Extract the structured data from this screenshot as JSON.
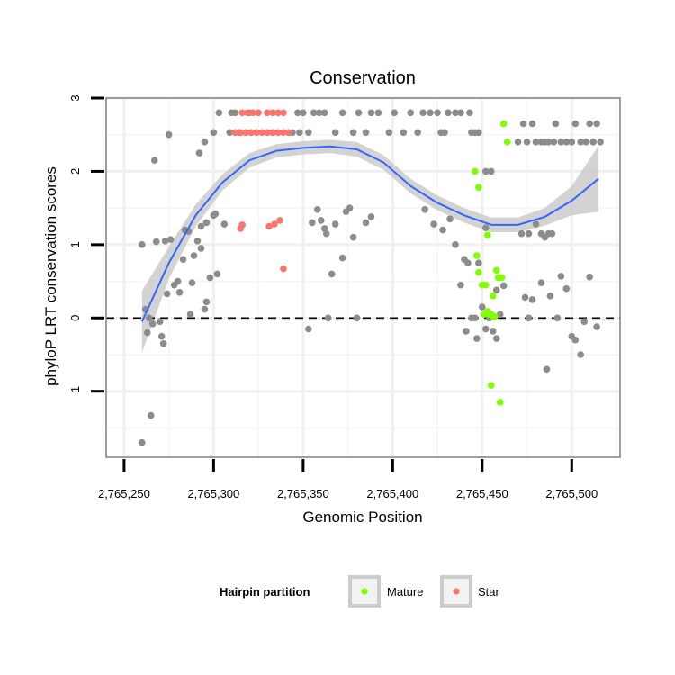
{
  "chart_data": {
    "type": "scatter",
    "title": "Conservation",
    "xlabel": "Genomic Position",
    "ylabel": "phyloP LRT conservation scores",
    "xlim": [
      2765240,
      2765527
    ],
    "ylim": [
      -1.9,
      3.0
    ],
    "x_ticks": [
      2765250,
      2765300,
      2765350,
      2765400,
      2765450,
      2765500
    ],
    "x_tick_labels": [
      "2,765,250",
      "2,765,300",
      "2,765,350",
      "2,765,400",
      "2,765,450",
      "2,765,500"
    ],
    "y_ticks": [
      -1,
      0,
      1,
      2,
      3
    ],
    "y_tick_labels": [
      "-1",
      "0",
      "1",
      "2",
      "3"
    ],
    "grid": true,
    "reference_line": {
      "y": 0,
      "style": "dashed"
    },
    "legend": {
      "title": "Hairpin partition",
      "position": "bottom",
      "entries": [
        {
          "label": "Mature",
          "color": "#7FFF00"
        },
        {
          "label": "Star",
          "color": "#F8766D"
        }
      ]
    },
    "colors": {
      "other": "#8C8C8C",
      "Mature": "#7FFF00",
      "Star": "#F8766D",
      "smooth": "#3366FF",
      "band": "#C8C8C8"
    },
    "smooth_line": {
      "x": [
        2765260,
        2765275,
        2765290,
        2765305,
        2765320,
        2765335,
        2765350,
        2765365,
        2765380,
        2765395,
        2765410,
        2765425,
        2765440,
        2765455,
        2765470,
        2765485,
        2765500,
        2765515
      ],
      "y": [
        -0.05,
        0.75,
        1.4,
        1.85,
        2.15,
        2.28,
        2.32,
        2.34,
        2.3,
        2.12,
        1.8,
        1.57,
        1.4,
        1.27,
        1.27,
        1.38,
        1.6,
        1.9
      ],
      "band_halfwidth": [
        0.42,
        0.22,
        0.15,
        0.11,
        0.1,
        0.09,
        0.09,
        0.09,
        0.1,
        0.1,
        0.1,
        0.1,
        0.1,
        0.1,
        0.1,
        0.12,
        0.2,
        0.45
      ]
    },
    "series": [
      {
        "name": "Other",
        "points": [
          [
            2765260,
            1.0
          ],
          [
            2765262,
            0.12
          ],
          [
            2765263,
            -0.2
          ],
          [
            2765264,
            0.0
          ],
          [
            2765266,
            -0.08
          ],
          [
            2765265,
            -1.33
          ],
          [
            2765260,
            -1.7
          ],
          [
            2765267,
            2.15
          ],
          [
            2765268,
            1.04
          ],
          [
            2765270,
            -0.05
          ],
          [
            2765271,
            -0.25
          ],
          [
            2765272,
            -0.35
          ],
          [
            2765273,
            1.05
          ],
          [
            2765274,
            0.33
          ],
          [
            2765275,
            2.5
          ],
          [
            2765276,
            1.07
          ],
          [
            2765278,
            0.45
          ],
          [
            2765280,
            0.5
          ],
          [
            2765281,
            0.35
          ],
          [
            2765283,
            0.8
          ],
          [
            2765284,
            1.2
          ],
          [
            2765286,
            1.18
          ],
          [
            2765287,
            0.05
          ],
          [
            2765288,
            0.48
          ],
          [
            2765289,
            0.85
          ],
          [
            2765291,
            1.05
          ],
          [
            2765292,
            2.25
          ],
          [
            2765293,
            1.25
          ],
          [
            2765293,
            0.95
          ],
          [
            2765295,
            0.12
          ],
          [
            2765295,
            2.4
          ],
          [
            2765296,
            1.3
          ],
          [
            2765296,
            0.22
          ],
          [
            2765298,
            0.55
          ],
          [
            2765300,
            1.4
          ],
          [
            2765301,
            1.42
          ],
          [
            2765302,
            0.6
          ],
          [
            2765300,
            2.53
          ],
          [
            2765303,
            2.8
          ],
          [
            2765306,
            1.28
          ],
          [
            2765309,
            2.53
          ],
          [
            2765310,
            2.8
          ],
          [
            2765312,
            2.8
          ],
          [
            2765314,
            2.53
          ],
          [
            2765318,
            2.53
          ],
          [
            2765320,
            2.8
          ],
          [
            2765344,
            2.53
          ],
          [
            2765347,
            2.8
          ],
          [
            2765348,
            2.53
          ],
          [
            2765350,
            2.8
          ],
          [
            2765353,
            2.53
          ],
          [
            2765356,
            2.8
          ],
          [
            2765359,
            2.8
          ],
          [
            2765362,
            2.8
          ],
          [
            2765368,
            2.53
          ],
          [
            2765372,
            2.8
          ],
          [
            2765378,
            2.53
          ],
          [
            2765381,
            2.8
          ],
          [
            2765385,
            2.53
          ],
          [
            2765388,
            2.8
          ],
          [
            2765392,
            2.8
          ],
          [
            2765398,
            2.53
          ],
          [
            2765401,
            2.8
          ],
          [
            2765406,
            2.53
          ],
          [
            2765410,
            2.8
          ],
          [
            2765414,
            2.53
          ],
          [
            2765417,
            2.8
          ],
          [
            2765421,
            2.8
          ],
          [
            2765425,
            2.8
          ],
          [
            2765427,
            2.53
          ],
          [
            2765429,
            2.53
          ],
          [
            2765431,
            2.8
          ],
          [
            2765435,
            2.8
          ],
          [
            2765438,
            2.8
          ],
          [
            2765443,
            2.8
          ],
          [
            2765444,
            2.53
          ],
          [
            2765446,
            2.53
          ],
          [
            2765448,
            2.53
          ],
          [
            2765452,
            1.23
          ],
          [
            2765355,
            1.3
          ],
          [
            2765358,
            1.48
          ],
          [
            2765360,
            1.33
          ],
          [
            2765363,
            1.15
          ],
          [
            2765364,
            0.0
          ],
          [
            2765366,
            0.6
          ],
          [
            2765368,
            1.28
          ],
          [
            2765372,
            0.82
          ],
          [
            2765374,
            1.45
          ],
          [
            2765376,
            1.5
          ],
          [
            2765378,
            1.1
          ],
          [
            2765380,
            0.0
          ],
          [
            2765385,
            1.3
          ],
          [
            2765388,
            1.38
          ],
          [
            2765353,
            -0.15
          ],
          [
            2765362,
            1.22
          ],
          [
            2765418,
            1.48
          ],
          [
            2765423,
            1.28
          ],
          [
            2765428,
            1.2
          ],
          [
            2765432,
            1.35
          ],
          [
            2765435,
            1.0
          ],
          [
            2765438,
            0.45
          ],
          [
            2765440,
            0.8
          ],
          [
            2765442,
            0.75
          ],
          [
            2765444,
            0.0
          ],
          [
            2765446,
            0.0
          ],
          [
            2765448,
            0.75
          ],
          [
            2765441,
            -0.18
          ],
          [
            2765447,
            -0.28
          ],
          [
            2765450,
            0.15
          ],
          [
            2765452,
            -0.15
          ],
          [
            2765454,
            0.0
          ],
          [
            2765456,
            -0.18
          ],
          [
            2765458,
            -0.28
          ],
          [
            2765460,
            0.05
          ],
          [
            2765462,
            0.44
          ],
          [
            2765452,
            2.0
          ],
          [
            2765455,
            2.0
          ],
          [
            2765470,
            2.4
          ],
          [
            2765473,
            2.65
          ],
          [
            2765475,
            2.4
          ],
          [
            2765478,
            2.65
          ],
          [
            2765480,
            2.4
          ],
          [
            2765483,
            2.4
          ],
          [
            2765485,
            2.4
          ],
          [
            2765487,
            2.4
          ],
          [
            2765490,
            2.4
          ],
          [
            2765491,
            2.65
          ],
          [
            2765494,
            2.4
          ],
          [
            2765497,
            2.4
          ],
          [
            2765500,
            2.4
          ],
          [
            2765502,
            2.65
          ],
          [
            2765505,
            2.4
          ],
          [
            2765508,
            2.4
          ],
          [
            2765510,
            2.65
          ],
          [
            2765512,
            2.4
          ],
          [
            2765514,
            2.65
          ],
          [
            2765516,
            2.4
          ],
          [
            2765472,
            1.15
          ],
          [
            2765476,
            1.15
          ],
          [
            2765480,
            1.28
          ],
          [
            2765483,
            1.15
          ],
          [
            2765485,
            1.1
          ],
          [
            2765487,
            1.15
          ],
          [
            2765489,
            1.15
          ],
          [
            2765478,
            0.25
          ],
          [
            2765483,
            0.48
          ],
          [
            2765486,
            -0.7
          ],
          [
            2765488,
            0.3
          ],
          [
            2765492,
            0.0
          ],
          [
            2765494,
            0.57
          ],
          [
            2765497,
            0.4
          ],
          [
            2765500,
            -0.25
          ],
          [
            2765502,
            -0.3
          ],
          [
            2765505,
            -0.5
          ],
          [
            2765507,
            -0.05
          ],
          [
            2765510,
            0.56
          ],
          [
            2765514,
            -0.12
          ],
          [
            2765476,
            0.0
          ],
          [
            2765474,
            0.28
          ],
          [
            2765458,
            0.38
          ]
        ]
      },
      {
        "name": "Mature",
        "points": [
          [
            2765462,
            2.65
          ],
          [
            2765464,
            2.4
          ],
          [
            2765446,
            2.0
          ],
          [
            2765448,
            1.78
          ],
          [
            2765453,
            1.13
          ],
          [
            2765447,
            0.85
          ],
          [
            2765448,
            0.62
          ],
          [
            2765450,
            0.45
          ],
          [
            2765452,
            0.45
          ],
          [
            2765451,
            0.05
          ],
          [
            2765453,
            0.09
          ],
          [
            2765454,
            0.05
          ],
          [
            2765455,
            0.05
          ],
          [
            2765456,
            0.02
          ],
          [
            2765457,
            0.02
          ],
          [
            2765458,
            0.65
          ],
          [
            2765459,
            0.55
          ],
          [
            2765460,
            0.55
          ],
          [
            2765461,
            0.55
          ],
          [
            2765456,
            0.3
          ],
          [
            2765455,
            -0.92
          ],
          [
            2765460,
            -1.15
          ]
        ]
      },
      {
        "name": "Star",
        "points": [
          [
            2765315,
            1.22
          ],
          [
            2765316,
            1.27
          ],
          [
            2765331,
            1.25
          ],
          [
            2765334,
            1.28
          ],
          [
            2765337,
            1.33
          ],
          [
            2765339,
            0.67
          ],
          [
            2765312,
            2.53
          ],
          [
            2765315,
            2.53
          ],
          [
            2765318,
            2.53
          ],
          [
            2765321,
            2.53
          ],
          [
            2765324,
            2.53
          ],
          [
            2765327,
            2.53
          ],
          [
            2765330,
            2.53
          ],
          [
            2765333,
            2.53
          ],
          [
            2765336,
            2.53
          ],
          [
            2765339,
            2.53
          ],
          [
            2765342,
            2.53
          ],
          [
            2765316,
            2.8
          ],
          [
            2765319,
            2.8
          ],
          [
            2765322,
            2.8
          ],
          [
            2765325,
            2.8
          ],
          [
            2765330,
            2.8
          ],
          [
            2765333,
            2.8
          ],
          [
            2765336,
            2.8
          ],
          [
            2765339,
            2.8
          ]
        ]
      }
    ]
  }
}
